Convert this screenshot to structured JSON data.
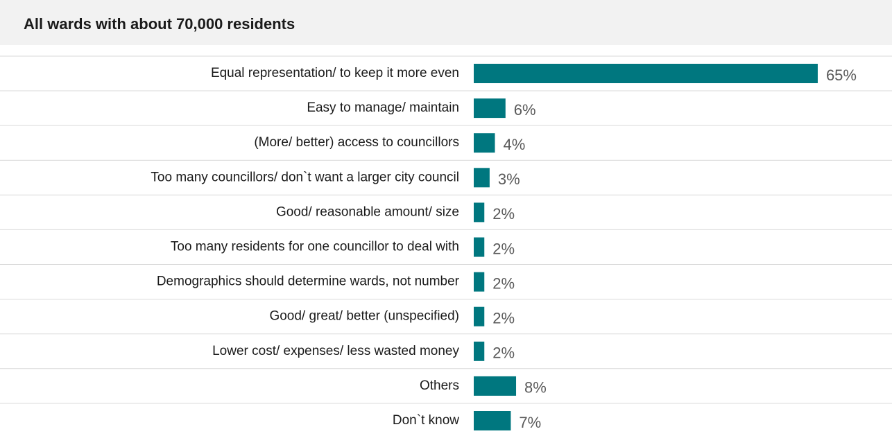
{
  "chart_data": {
    "type": "bar",
    "title": "All wards with about 70,000 residents",
    "categories": [
      "Equal representation/ to keep it more even",
      "Easy to manage/ maintain",
      "(More/ better) access to councillors",
      "Too many councillors/ don`t want a larger city council",
      "Good/ reasonable amount/ size",
      "Too many residents for one councillor to deal with",
      "Demographics should determine wards, not number",
      "Good/ great/ better (unspecified)",
      "Lower cost/ expenses/ less wasted money",
      "Others",
      "Don`t know"
    ],
    "values": [
      65,
      6,
      4,
      3,
      2,
      2,
      2,
      2,
      2,
      8,
      7
    ],
    "value_labels": [
      "65%",
      "6%",
      "4%",
      "3%",
      "2%",
      "2%",
      "2%",
      "2%",
      "2%",
      "8%",
      "7%"
    ],
    "color": "#00777f"
  }
}
